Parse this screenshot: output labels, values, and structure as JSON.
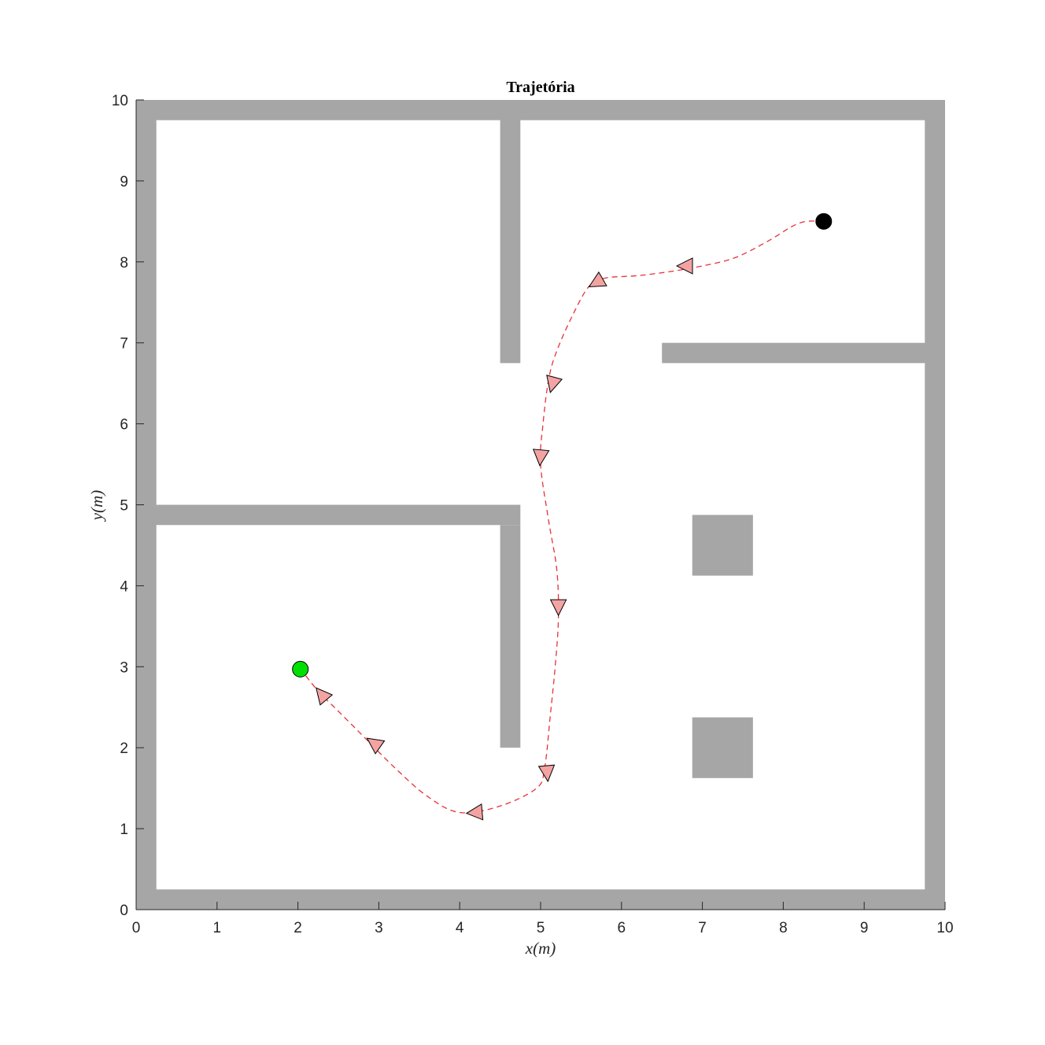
{
  "chart_data": {
    "type": "scatter",
    "title": "Trajetória",
    "xlabel": "x(m)",
    "ylabel": "y(m)",
    "xlim": [
      0,
      10
    ],
    "ylim": [
      0,
      10
    ],
    "xticks": [
      0,
      1,
      2,
      3,
      4,
      5,
      6,
      7,
      8,
      9,
      10
    ],
    "yticks": [
      0,
      1,
      2,
      3,
      4,
      5,
      6,
      7,
      8,
      9,
      10
    ],
    "grid": false,
    "obstacle_color": "#a6a6a6",
    "obstacles": [
      {
        "name": "wall-bottom",
        "x0": 0,
        "x1": 10,
        "y0": 0,
        "y1": 0.25
      },
      {
        "name": "wall-top",
        "x0": 0,
        "x1": 10,
        "y0": 9.75,
        "y1": 10
      },
      {
        "name": "wall-left",
        "x0": 0,
        "x1": 0.25,
        "y0": 0,
        "y1": 10
      },
      {
        "name": "wall-right",
        "x0": 9.75,
        "x1": 10,
        "y0": 0,
        "y1": 10
      },
      {
        "name": "wall-upper-divider",
        "x0": 4.5,
        "x1": 4.75,
        "y0": 6.75,
        "y1": 10
      },
      {
        "name": "wall-middle-horizontal",
        "x0": 0,
        "x1": 4.75,
        "y0": 4.75,
        "y1": 5
      },
      {
        "name": "wall-lower-divider",
        "x0": 4.5,
        "x1": 4.75,
        "y0": 2,
        "y1": 4.75
      },
      {
        "name": "wall-right-shelf",
        "x0": 6.5,
        "x1": 10,
        "y0": 6.75,
        "y1": 7
      },
      {
        "name": "block-upper",
        "x0": 6.875,
        "x1": 7.625,
        "y0": 4.125,
        "y1": 4.875
      },
      {
        "name": "block-lower",
        "x0": 6.875,
        "x1": 7.625,
        "y0": 1.625,
        "y1": 2.375
      }
    ],
    "series": [
      {
        "style": "dashed",
        "color": "#e8313a",
        "x": [
          8.5,
          8.2,
          7.8,
          7.4,
          7.0,
          6.6,
          6.2,
          5.8,
          5.6,
          5.4,
          5.2,
          5.1,
          5.03,
          5.0,
          5.1,
          5.2,
          5.22,
          5.18,
          5.12,
          5.05,
          4.95,
          4.5,
          4.0,
          3.6,
          3.2,
          2.8,
          2.5,
          2.25,
          2.05
        ],
        "y": [
          8.5,
          8.48,
          8.25,
          8.05,
          7.95,
          7.88,
          7.83,
          7.8,
          7.7,
          7.35,
          6.9,
          6.55,
          6.0,
          5.5,
          4.8,
          4.2,
          3.6,
          3.0,
          2.4,
          1.75,
          1.5,
          1.28,
          1.2,
          1.4,
          1.75,
          2.15,
          2.45,
          2.7,
          2.95
        ]
      }
    ],
    "direction_markers": [
      {
        "x": 6.8,
        "y": 7.95,
        "angle": 180
      },
      {
        "x": 5.7,
        "y": 7.75,
        "angle": 210
      },
      {
        "x": 5.15,
        "y": 6.5,
        "angle": 255
      },
      {
        "x": 5.0,
        "y": 5.6,
        "angle": 265
      },
      {
        "x": 5.22,
        "y": 3.75,
        "angle": 270
      },
      {
        "x": 5.08,
        "y": 1.7,
        "angle": 275
      },
      {
        "x": 4.2,
        "y": 1.2,
        "angle": 185
      },
      {
        "x": 2.95,
        "y": 2.05,
        "angle": 145
      },
      {
        "x": 2.3,
        "y": 2.65,
        "angle": 130
      }
    ],
    "marker_fill": "#f4a3a3",
    "start_point": {
      "x": 8.5,
      "y": 8.5,
      "color": "#000000"
    },
    "end_point": {
      "x": 2.03,
      "y": 2.97,
      "color": "#00e000"
    }
  }
}
